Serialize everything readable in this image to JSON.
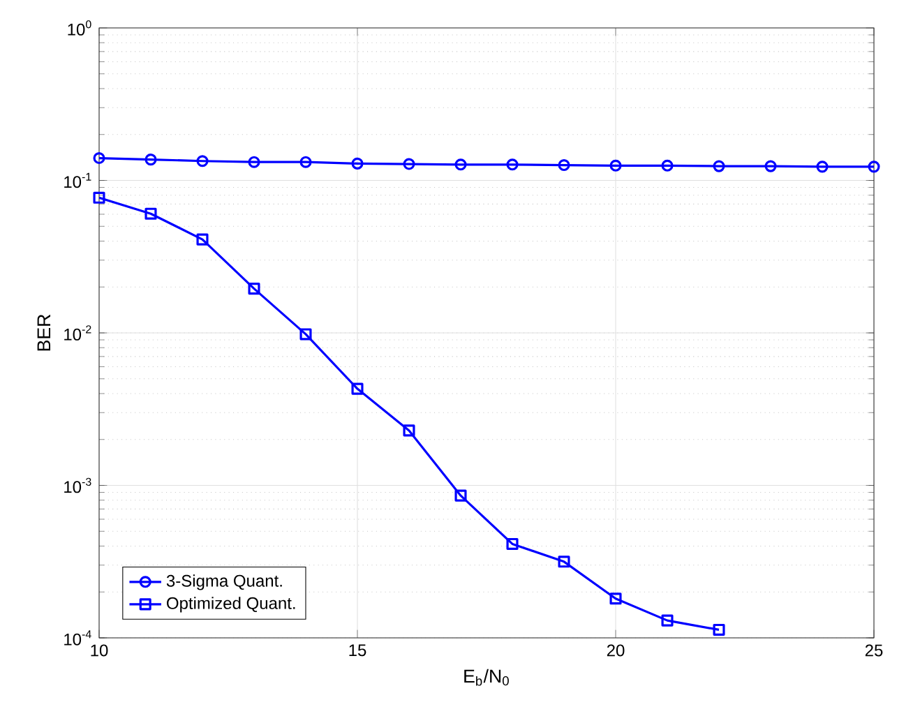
{
  "chart_data": {
    "type": "line",
    "xlabel": "E$_{b}$/N$_{0}$",
    "ylabel": "BER",
    "log": "y",
    "grid": true,
    "legend": "bottom left",
    "line_style": "solid",
    "xlim": [
      10,
      25
    ],
    "xticks": [
      10,
      15,
      20,
      25
    ],
    "ylim": [
      0.0001,
      1
    ],
    "yticks": [
      {
        "value": 0.0001,
        "label": "10$^{-4}$"
      },
      {
        "value": 0.001,
        "label": "10$^{-3}$"
      },
      {
        "value": 0.01,
        "label": "10$^{-2}$"
      },
      {
        "value": 0.1,
        "label": "10$^{-1}$"
      },
      {
        "value": 1,
        "label": "10$^{0}$"
      }
    ],
    "series": [
      {
        "name": "3-Sigma Quant.",
        "color": "#0000ff",
        "marker": "circle",
        "x": [
          10,
          11,
          12,
          13,
          14,
          15,
          16,
          17,
          18,
          19,
          20,
          21,
          22,
          23,
          24,
          25
        ],
        "values": [
          0.14,
          0.137,
          0.134,
          0.132,
          0.132,
          0.129,
          0.128,
          0.127,
          0.127,
          0.126,
          0.125,
          0.125,
          0.124,
          0.124,
          0.123,
          0.123
        ]
      },
      {
        "name": "Optimized Quant.",
        "color": "#0000ff",
        "marker": "square",
        "x": [
          10,
          11,
          12,
          13,
          14,
          15,
          16,
          17,
          18,
          19,
          20,
          21,
          22
        ],
        "values": [
          0.077,
          0.0605,
          0.041,
          0.0195,
          0.0098,
          0.0043,
          0.00229,
          0.000857,
          0.000413,
          0.000316,
          0.000181,
          0.00013,
          0.000113
        ]
      }
    ]
  }
}
